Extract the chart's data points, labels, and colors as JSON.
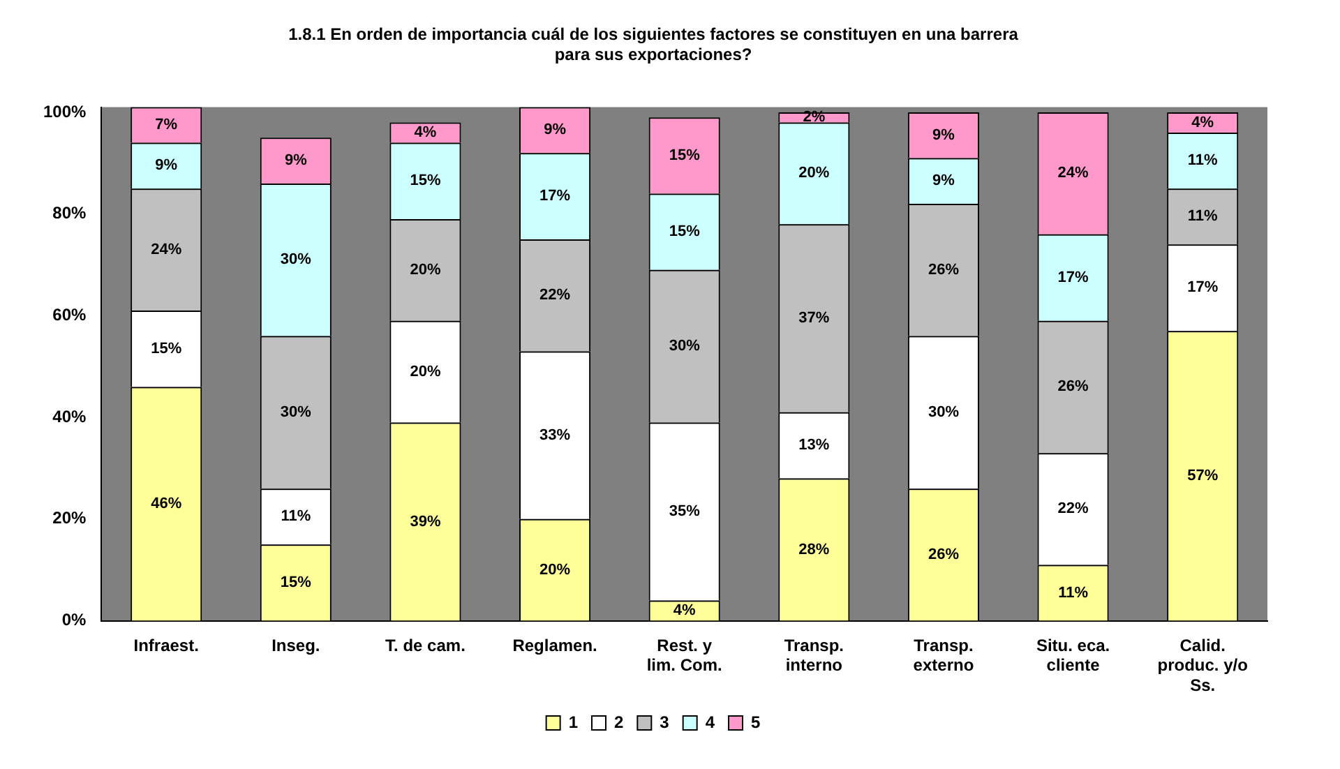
{
  "chart_data": {
    "type": "bar",
    "stacked": true,
    "title": "1.8.1 En orden de importancia cuál de los siguientes factores se constituyen en una barrera para sus exportaciones?",
    "categories": [
      "Infraest.",
      "Inseg.",
      "T. de cam.",
      "Reglamen.",
      "Rest. y lim. Com.",
      "Transp. interno",
      "Transp. externo",
      "Situ. eca. cliente",
      "Calid. produc. y/o Ss."
    ],
    "series": [
      {
        "name": "1",
        "color": "#ffff99",
        "values": [
          46,
          15,
          39,
          20,
          4,
          28,
          26,
          11,
          57
        ],
        "value_labels": [
          "46%",
          "15%",
          "39%",
          "20%",
          "4%",
          "28%",
          "26%",
          "11%",
          "57%"
        ]
      },
      {
        "name": "2",
        "color": "#ffffff",
        "values": [
          15,
          11,
          20,
          33,
          35,
          13,
          30,
          22,
          17
        ],
        "value_labels": [
          "15%",
          "11%",
          "20%",
          "33%",
          "35%",
          "13%",
          "30%",
          "22%",
          "17%"
        ]
      },
      {
        "name": "3",
        "color": "#c0c0c0",
        "values": [
          24,
          30,
          20,
          22,
          30,
          37,
          26,
          26,
          11
        ],
        "value_labels": [
          "24%",
          "30%",
          "20%",
          "22%",
          "30%",
          "37%",
          "26%",
          "26%",
          "11%"
        ]
      },
      {
        "name": "4",
        "color": "#ccffff",
        "values": [
          9,
          30,
          15,
          17,
          15,
          20,
          9,
          17,
          11
        ],
        "value_labels": [
          "9%",
          "30%",
          "15%",
          "17%",
          "15%",
          "20%",
          "9%",
          "17%",
          "11%"
        ]
      },
      {
        "name": "5",
        "color": "#ff99cc",
        "values": [
          7,
          9,
          4,
          9,
          15,
          2,
          9,
          24,
          4
        ],
        "value_labels": [
          "7%",
          "9%",
          "4%",
          "9%",
          "15%",
          "2%",
          "9%",
          "24%",
          "4%"
        ]
      }
    ],
    "ylim": [
      0,
      101
    ],
    "yticks": [
      {
        "value": 0,
        "label": "0%"
      },
      {
        "value": 20,
        "label": "20%"
      },
      {
        "value": 40,
        "label": "40%"
      },
      {
        "value": 60,
        "label": "60%"
      },
      {
        "value": 80,
        "label": "80%"
      },
      {
        "value": 100,
        "label": "100%"
      }
    ],
    "grid": false,
    "legend": "bottom"
  }
}
